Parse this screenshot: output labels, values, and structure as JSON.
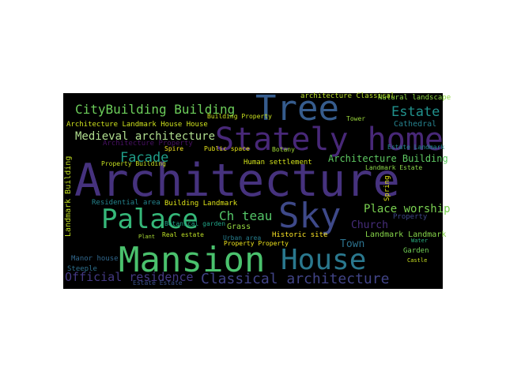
{
  "chart_data": {
    "type": "wordcloud",
    "background": "#000000",
    "words": [
      {
        "text": "Architecture",
        "color": "#46327e"
      },
      {
        "text": "Tree",
        "color": "#365c8d"
      },
      {
        "text": "Stately home",
        "color": "#482878"
      },
      {
        "text": "Mansion",
        "color": "#4ac16d"
      },
      {
        "text": "House",
        "color": "#2a788e"
      },
      {
        "text": "Sky",
        "color": "#3e4989"
      },
      {
        "text": "Palace",
        "color": "#35b779"
      },
      {
        "text": "CityBuilding Building",
        "color": "#6ccd5a"
      },
      {
        "text": "Estate",
        "color": "#21918c"
      },
      {
        "text": "Medieval architecture",
        "color": "#b0dd8f"
      },
      {
        "text": "Facade",
        "color": "#1f9e89"
      },
      {
        "text": "Classical architecture",
        "color": "#414487"
      },
      {
        "text": "Official residence",
        "color": "#443983"
      },
      {
        "text": "Architecture Landmark House House",
        "color": "#cde11d"
      },
      {
        "text": "Ch teau",
        "color": "#54c568"
      },
      {
        "text": "Place worship",
        "color": "#7ad151"
      },
      {
        "text": "Architecture Building",
        "color": "#5ec962"
      },
      {
        "text": "Church",
        "color": "#472d7b"
      },
      {
        "text": "Landmark Landmark",
        "color": "#86d549"
      },
      {
        "text": "Town",
        "color": "#2c728e"
      },
      {
        "text": "Human settlement",
        "color": "#d2e21b"
      },
      {
        "text": "Public space",
        "color": "#e5e419"
      },
      {
        "text": "Botany",
        "color": "#a2da37"
      },
      {
        "text": "Building Landmark",
        "color": "#dde318"
      },
      {
        "text": "Residential area",
        "color": "#25848e"
      },
      {
        "text": "Grass",
        "color": "#95d840"
      },
      {
        "text": "Historic site",
        "color": "#fde725"
      },
      {
        "text": "Urban area",
        "color": "#277f8e"
      },
      {
        "text": "Property Property",
        "color": "#f1e51d"
      },
      {
        "text": "Real estate",
        "color": "#bddf26"
      },
      {
        "text": "Plant",
        "color": "#a8db34"
      },
      {
        "text": "Manor house",
        "color": "#31688e"
      },
      {
        "text": "Steeple",
        "color": "#2d708e"
      },
      {
        "text": "Estate Estate",
        "color": "#3b528b"
      },
      {
        "text": "Landmark Building",
        "color": "#c2df23"
      },
      {
        "text": "Cathedral",
        "color": "#26828e"
      },
      {
        "text": "Tower",
        "color": "#9bd93c"
      },
      {
        "text": "Natural landscape",
        "color": "#8fd744"
      },
      {
        "text": "architecture Classical",
        "color": "#b8de29"
      },
      {
        "text": "Spire",
        "color": "#f8e621"
      },
      {
        "text": "Building Property",
        "color": "#cae11f"
      },
      {
        "text": "Garden",
        "color": "#73d056"
      },
      {
        "text": "Castle",
        "color": "#c8e020"
      },
      {
        "text": "Property",
        "color": "#3f4788"
      },
      {
        "text": "Botanical garden",
        "color": "#20a386"
      },
      {
        "text": "Property Building",
        "color": "#c5e021"
      },
      {
        "text": "Architecture Property",
        "color": "#471063"
      },
      {
        "text": "Landmark Estate",
        "color": "#89d548"
      },
      {
        "text": "Estate Landmark",
        "color": "#23888e"
      },
      {
        "text": "Water",
        "color": "#29af7f"
      },
      {
        "text": "Spring",
        "color": "#e2e418"
      }
    ]
  }
}
